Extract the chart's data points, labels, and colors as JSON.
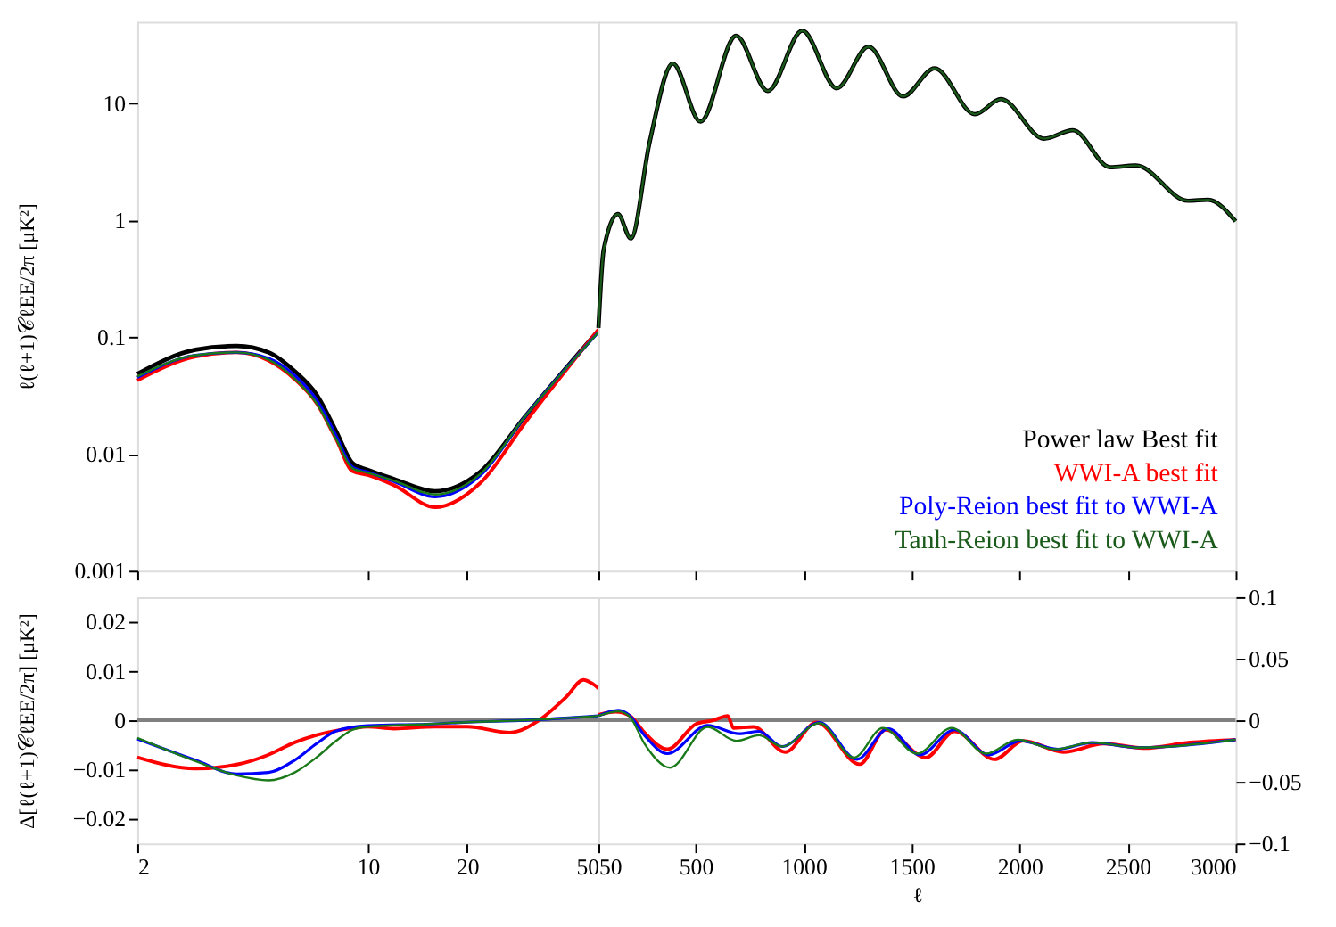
{
  "chart_data": [
    {
      "type": "line",
      "ylabel": "ℓ(ℓ+1)𝒞ℓEE/2π [μK²]",
      "log": "xy",
      "xlim": [
        2,
        50
      ],
      "xticks": [
        2,
        10,
        20,
        50
      ],
      "ylim": [
        0.001,
        50
      ],
      "yticks": [
        0.001,
        0.01,
        0.1,
        1,
        10
      ],
      "tick_labels": "y",
      "x": [
        2,
        3,
        4,
        5,
        6,
        7,
        8,
        9,
        10,
        12,
        16,
        22,
        30,
        50
      ],
      "series": [
        {
          "color": "#000000",
          "values": [
            0.0484,
            0.078,
            0.084,
            0.074,
            0.051,
            0.032,
            0.0158,
            0.0083,
            0.0073,
            0.0061,
            0.0048,
            0.0071,
            0.021,
            0.114
          ]
        },
        {
          "color": "#ff0000",
          "values": [
            0.0426,
            0.068,
            0.074,
            0.063,
            0.0436,
            0.027,
            0.0135,
            0.0071,
            0.0066,
            0.0054,
            0.0035,
            0.0057,
            0.0186,
            0.116
          ]
        },
        {
          "color": "#0000ff",
          "values": [
            0.045,
            0.07,
            0.074,
            0.066,
            0.047,
            0.029,
            0.0145,
            0.0077,
            0.007,
            0.0058,
            0.0043,
            0.0066,
            0.021,
            0.11
          ]
        },
        {
          "color": "#1a7a1a",
          "values": [
            0.046,
            0.07,
            0.074,
            0.064,
            0.044,
            0.027,
            0.0135,
            0.0075,
            0.0069,
            0.0059,
            0.0045,
            0.0068,
            0.021,
            0.11
          ]
        }
      ]
    },
    {
      "type": "line",
      "log": "y",
      "xlim": [
        50,
        3000
      ],
      "xticks": [
        50,
        500,
        1000,
        1500,
        2000,
        2500,
        3000
      ],
      "ylim": [
        0.001,
        50
      ],
      "yticks": [
        0.001,
        0.01,
        0.1,
        1,
        10
      ],
      "tick_labels": false,
      "legend": "bottom right",
      "x": [
        50,
        74,
        140,
        200,
        287,
        394,
        522,
        687,
        834,
        994,
        1153,
        1300,
        1460,
        1606,
        1793,
        1913,
        2113,
        2246,
        2419,
        2539,
        2779,
        2872,
        3000
      ],
      "series": [
        {
          "name": "Power law Best fit",
          "color": "#000000",
          "values": [
            0.12,
            0.56,
            1.13,
            0.7,
            4.7,
            22,
            7.0,
            38,
            12.8,
            42,
            13.5,
            30.6,
            11.5,
            20,
            8.1,
            10.9,
            5.0,
            5.9,
            2.85,
            2.95,
            1.47,
            1.5,
            0.98
          ]
        },
        {
          "name": "WWI-A best fit",
          "color": "#ff0000",
          "values": [
            null,
            null,
            null,
            null,
            null,
            null,
            null,
            null,
            null,
            null,
            null,
            null,
            null,
            null,
            null,
            null,
            null,
            null,
            null,
            null,
            null,
            null,
            null
          ]
        },
        {
          "name": "Poly-Reion best fit to WWI-A",
          "color": "#0000ff",
          "values": [
            null,
            null,
            null,
            null,
            null,
            null,
            null,
            null,
            null,
            null,
            null,
            null,
            null,
            null,
            null,
            null,
            null,
            null,
            null,
            null,
            null,
            null,
            null
          ]
        },
        {
          "name": "Tanh-Reion best fit to WWI-A",
          "color": "#1a5a1a",
          "values": [
            0.12,
            0.56,
            1.13,
            0.7,
            4.7,
            22,
            7.0,
            38,
            12.8,
            42,
            13.5,
            30.6,
            11.5,
            20,
            8.1,
            10.9,
            5.0,
            5.9,
            2.85,
            2.95,
            1.47,
            1.5,
            0.98
          ]
        }
      ]
    },
    {
      "type": "line",
      "ylabel": "Δ[ℓ(ℓ+1)𝒞ℓEE/2π] [μK²]",
      "log": "x",
      "xlim": [
        2,
        50
      ],
      "xticks": [
        2,
        10,
        20,
        50
      ],
      "ylim": [
        -0.025,
        0.025
      ],
      "yticks": [
        -0.02,
        -0.01,
        0,
        0.01,
        0.02
      ],
      "ref_lines": [
        {
          "axis": "y",
          "value": 0,
          "color": "#808080"
        }
      ],
      "series": [
        {
          "color": "#ff0000",
          "x": [
            2,
            3,
            4,
            5,
            6,
            7,
            9,
            10,
            12,
            16,
            20,
            27,
            33,
            40,
            45,
            48,
            50
          ],
          "values": [
            -0.0075,
            -0.0098,
            -0.009,
            -0.007,
            -0.0045,
            -0.003,
            -0.0016,
            -0.0013,
            -0.0017,
            -0.0013,
            -0.0013,
            -0.0025,
            0,
            0.0048,
            0.0082,
            0.0074,
            0.0065
          ]
        },
        {
          "color": "#0000ff",
          "x": [
            2,
            3,
            4,
            5,
            6,
            7,
            8,
            10,
            15,
            20,
            30,
            50
          ],
          "values": [
            -0.0038,
            -0.0081,
            -0.0109,
            -0.0106,
            -0.0081,
            -0.0047,
            -0.0022,
            -0.0011,
            -0.0008,
            -0.0004,
            0,
            0.0009
          ]
        },
        {
          "color": "#1a7a1a",
          "x": [
            2,
            3,
            4,
            5,
            6,
            7,
            8,
            9,
            10,
            15,
            20,
            30,
            50
          ],
          "values": [
            -0.0036,
            -0.0083,
            -0.0112,
            -0.0122,
            -0.0106,
            -0.0075,
            -0.0042,
            -0.0019,
            -0.0013,
            -0.0008,
            -0.0004,
            0,
            0.0009
          ]
        }
      ]
    },
    {
      "type": "line",
      "xlabel": "ℓ",
      "xlim": [
        50,
        3000
      ],
      "xticks": [
        50,
        500,
        1000,
        1500,
        2000,
        2500,
        3000
      ],
      "ylim": [
        -0.1,
        0.1
      ],
      "yticks": [
        -0.1,
        -0.05,
        0,
        0.05,
        0.1
      ],
      "ref_lines": [
        {
          "axis": "y",
          "value": 0,
          "color": "#808080"
        }
      ],
      "series": [
        {
          "color": "#ff0000",
          "x": [
            50,
            130,
            196,
            263,
            369,
            502,
            582,
            648,
            675,
            768,
            914,
            1060,
            1259,
            1379,
            1565,
            1698,
            1884,
            2017,
            2203,
            2389,
            2575,
            2788,
            3000
          ],
          "values": [
            0.0045,
            0.007,
            0.0036,
            -0.01,
            -0.0235,
            -0.003,
            0,
            0.0036,
            -0.0063,
            -0.0054,
            -0.0258,
            -0.0018,
            -0.0357,
            -0.0077,
            -0.0303,
            -0.009,
            -0.0317,
            -0.0167,
            -0.0258,
            -0.019,
            -0.0226,
            -0.0181,
            -0.0158
          ]
        },
        {
          "color": "#0000ff",
          "x": [
            50,
            143,
            196,
            263,
            369,
            555,
            701,
            794,
            900,
            1073,
            1246,
            1392,
            1538,
            1698,
            1857,
            2003,
            2176,
            2336,
            2549,
            3000
          ],
          "values": [
            0.0036,
            0.0081,
            0.0036,
            -0.0122,
            -0.0271,
            -0.0041,
            -0.0109,
            -0.009,
            -0.0213,
            -0.0018,
            -0.0317,
            -0.0068,
            -0.0281,
            -0.0077,
            -0.0281,
            -0.0167,
            -0.0235,
            -0.0181,
            -0.0222,
            -0.0158
          ]
        },
        {
          "color": "#1a7a1a",
          "x": [
            50,
            143,
            196,
            263,
            382,
            555,
            688,
            794,
            900,
            1073,
            1233,
            1366,
            1525,
            1685,
            1844,
            1990,
            2163,
            2336,
            2549,
            3000
          ],
          "values": [
            0.0036,
            0.0072,
            0.0027,
            -0.019,
            -0.0385,
            -0.0054,
            -0.0167,
            -0.0122,
            -0.0213,
            -0.0023,
            -0.0303,
            -0.0063,
            -0.0271,
            -0.0063,
            -0.0271,
            -0.0158,
            -0.0235,
            -0.0181,
            -0.0222,
            -0.0158
          ]
        }
      ]
    }
  ]
}
